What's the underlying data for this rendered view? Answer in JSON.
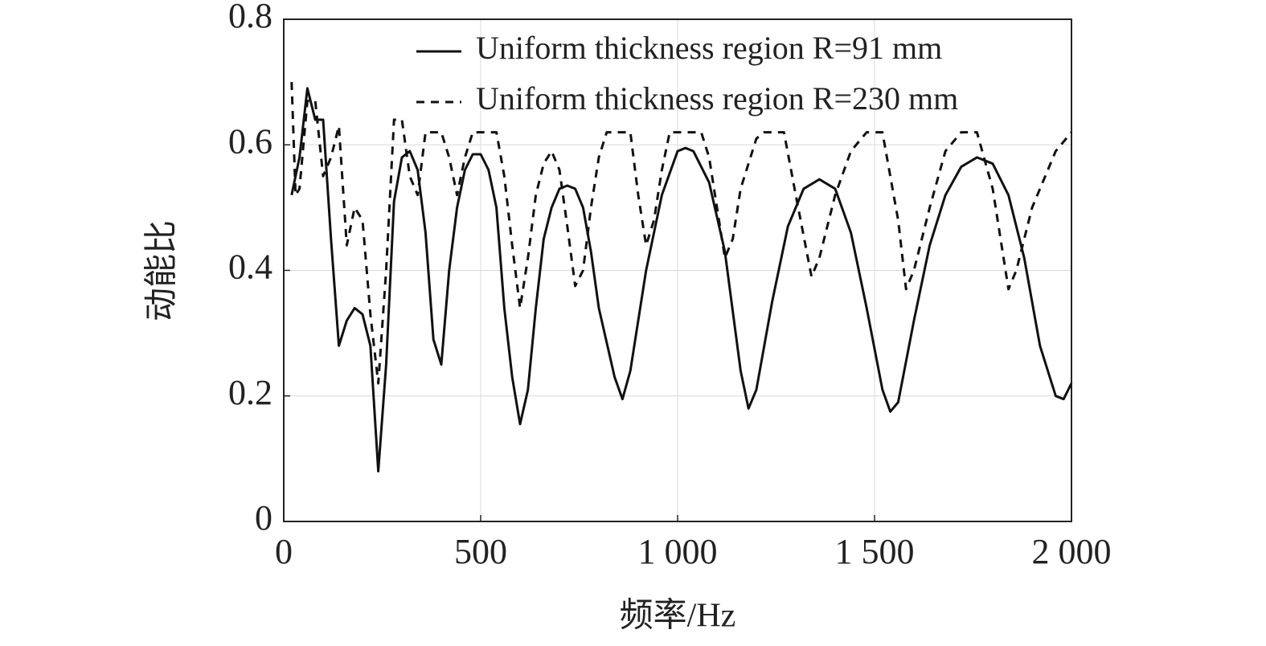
{
  "chart_data": {
    "type": "line",
    "xlabel": "频率/Hz",
    "ylabel": "动能比",
    "xlim": [
      0,
      2000
    ],
    "ylim": [
      0,
      0.8
    ],
    "xticks": [
      0,
      500,
      {
        "value": 1000,
        "label": "1 000"
      },
      {
        "value": 1500,
        "label": "1 500"
      },
      {
        "value": 2000,
        "label": "2 000"
      }
    ],
    "yticks": [
      0,
      0.2,
      0.4,
      0.6,
      0.8
    ],
    "grid": true,
    "legend": "upper right",
    "series": [
      {
        "name": "Uniform thickness region R=91 mm",
        "color": "#111111",
        "linestyle": "solid",
        "x": [
          20,
          40,
          60,
          80,
          100,
          120,
          140,
          160,
          180,
          200,
          220,
          240,
          260,
          280,
          300,
          320,
          340,
          360,
          380,
          400,
          420,
          440,
          460,
          480,
          500,
          520,
          540,
          560,
          580,
          600,
          620,
          640,
          660,
          680,
          700,
          720,
          740,
          760,
          780,
          800,
          840,
          860,
          880,
          920,
          960,
          1000,
          1020,
          1040,
          1080,
          1120,
          1160,
          1180,
          1200,
          1240,
          1280,
          1320,
          1360,
          1400,
          1440,
          1480,
          1520,
          1540,
          1560,
          1600,
          1640,
          1680,
          1720,
          1760,
          1800,
          1840,
          1880,
          1920,
          1960,
          1980,
          2000
        ],
        "values": [
          0.52,
          0.58,
          0.69,
          0.64,
          0.64,
          0.45,
          0.28,
          0.32,
          0.34,
          0.33,
          0.28,
          0.08,
          0.25,
          0.51,
          0.58,
          0.59,
          0.56,
          0.46,
          0.29,
          0.25,
          0.4,
          0.5,
          0.56,
          0.585,
          0.585,
          0.56,
          0.5,
          0.34,
          0.23,
          0.155,
          0.21,
          0.34,
          0.45,
          0.5,
          0.53,
          0.535,
          0.53,
          0.5,
          0.43,
          0.34,
          0.23,
          0.195,
          0.24,
          0.4,
          0.52,
          0.59,
          0.595,
          0.59,
          0.54,
          0.43,
          0.24,
          0.18,
          0.21,
          0.35,
          0.47,
          0.53,
          0.545,
          0.53,
          0.46,
          0.34,
          0.21,
          0.175,
          0.19,
          0.32,
          0.44,
          0.52,
          0.565,
          0.58,
          0.57,
          0.52,
          0.42,
          0.28,
          0.2,
          0.195,
          0.22
        ]
      },
      {
        "name": "Uniform thickness region R=230 mm",
        "color": "#111111",
        "linestyle": "dashed",
        "x": [
          20,
          30,
          40,
          60,
          80,
          100,
          120,
          140,
          160,
          180,
          200,
          220,
          240,
          260,
          280,
          300,
          320,
          340,
          360,
          400,
          420,
          440,
          460,
          480,
          540,
          560,
          580,
          600,
          620,
          640,
          660,
          680,
          700,
          720,
          740,
          760,
          780,
          800,
          820,
          880,
          900,
          920,
          940,
          960,
          980,
          1060,
          1080,
          1100,
          1120,
          1140,
          1160,
          1200,
          1220,
          1270,
          1300,
          1340,
          1360,
          1400,
          1440,
          1480,
          1520,
          1560,
          1580,
          1600,
          1640,
          1680,
          1720,
          1760,
          1800,
          1840,
          1860,
          1900,
          1960,
          2000
        ],
        "values": [
          0.7,
          0.52,
          0.53,
          0.67,
          0.67,
          0.55,
          0.58,
          0.63,
          0.44,
          0.5,
          0.48,
          0.33,
          0.22,
          0.4,
          0.64,
          0.64,
          0.55,
          0.52,
          0.62,
          0.62,
          0.58,
          0.52,
          0.58,
          0.62,
          0.62,
          0.55,
          0.44,
          0.34,
          0.42,
          0.52,
          0.57,
          0.59,
          0.56,
          0.47,
          0.375,
          0.4,
          0.5,
          0.58,
          0.62,
          0.62,
          0.52,
          0.44,
          0.48,
          0.56,
          0.62,
          0.62,
          0.58,
          0.5,
          0.42,
          0.45,
          0.53,
          0.61,
          0.62,
          0.62,
          0.52,
          0.39,
          0.42,
          0.52,
          0.59,
          0.62,
          0.62,
          0.48,
          0.37,
          0.4,
          0.5,
          0.59,
          0.62,
          0.62,
          0.53,
          0.37,
          0.4,
          0.5,
          0.59,
          0.62
        ]
      }
    ]
  }
}
